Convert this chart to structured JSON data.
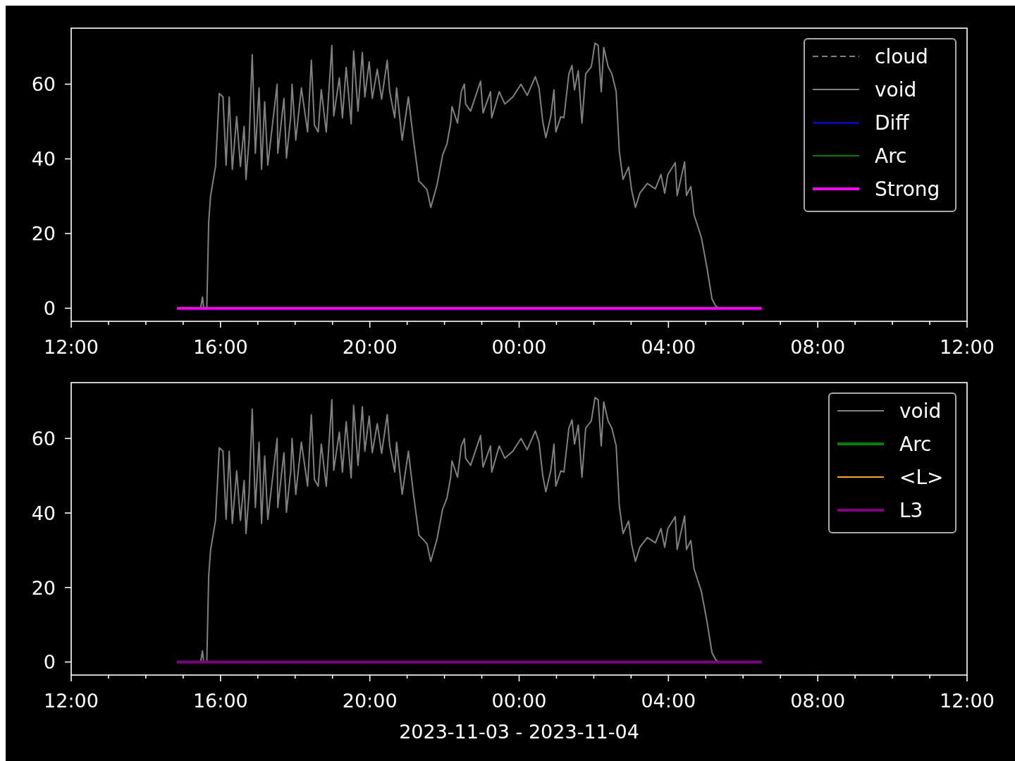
{
  "chart_data": [
    {
      "type": "line",
      "xlim": [
        "2023-11-03T12:00",
        "2023-11-04T12:00"
      ],
      "ylim": [
        -3.5,
        75
      ],
      "yticks": [
        0,
        20,
        40,
        60
      ],
      "xticks": [
        {
          "value": "2023-11-03T12:00",
          "label": "12:00"
        },
        {
          "value": "2023-11-03T13:00",
          "label": null
        },
        {
          "value": "2023-11-03T14:00",
          "label": null
        },
        {
          "value": "2023-11-03T15:00",
          "label": null
        },
        {
          "value": "2023-11-03T16:00",
          "label": "16:00"
        },
        {
          "value": "2023-11-03T17:00",
          "label": null
        },
        {
          "value": "2023-11-03T18:00",
          "label": null
        },
        {
          "value": "2023-11-03T19:00",
          "label": null
        },
        {
          "value": "2023-11-03T20:00",
          "label": "20:00"
        },
        {
          "value": "2023-11-03T21:00",
          "label": null
        },
        {
          "value": "2023-11-03T22:00",
          "label": null
        },
        {
          "value": "2023-11-03T23:00",
          "label": null
        },
        {
          "value": "2023-11-04T00:00",
          "label": "00:00"
        },
        {
          "value": "2023-11-04T01:00",
          "label": null
        },
        {
          "value": "2023-11-04T02:00",
          "label": null
        },
        {
          "value": "2023-11-04T03:00",
          "label": null
        },
        {
          "value": "2023-11-04T04:00",
          "label": "04:00"
        },
        {
          "value": "2023-11-04T05:00",
          "label": null
        },
        {
          "value": "2023-11-04T06:00",
          "label": null
        },
        {
          "value": "2023-11-04T07:00",
          "label": null
        },
        {
          "value": "2023-11-04T08:00",
          "label": "08:00"
        },
        {
          "value": "2023-11-04T09:00",
          "label": null
        },
        {
          "value": "2023-11-04T10:00",
          "label": null
        },
        {
          "value": "2023-11-04T11:00",
          "label": null
        },
        {
          "value": "2023-11-04T12:00",
          "label": "12:00"
        }
      ],
      "legend": "top right",
      "series": [
        {
          "name": "cloud",
          "color": "#808080",
          "line_style": "dashed"
        },
        {
          "name": "void",
          "color": "#808080",
          "x": [
            "2023-11-03T14:50",
            "2023-11-03T15:28",
            "2023-11-03T15:31",
            "2023-11-03T15:33",
            "2023-11-03T15:38",
            "2023-11-03T15:41",
            "2023-11-03T15:44",
            "2023-11-03T15:51",
            "2023-11-03T15:52",
            "2023-11-03T15:58",
            "2023-11-03T16:04",
            "2023-11-03T16:09",
            "2023-11-03T16:14",
            "2023-11-03T16:19",
            "2023-11-03T16:26",
            "2023-11-03T16:32",
            "2023-11-03T16:38",
            "2023-11-03T16:41",
            "2023-11-03T16:46",
            "2023-11-03T16:51",
            "2023-11-03T16:56",
            "2023-11-03T17:02",
            "2023-11-03T17:06",
            "2023-11-03T17:11",
            "2023-11-03T17:16",
            "2023-11-03T17:31",
            "2023-11-03T17:32",
            "2023-11-03T17:42",
            "2023-11-03T17:46",
            "2023-11-03T17:53",
            "2023-11-03T17:55",
            "2023-11-03T18:01",
            "2023-11-03T18:10",
            "2023-11-03T18:20",
            "2023-11-03T18:26",
            "2023-11-03T18:31",
            "2023-11-03T18:37",
            "2023-11-03T18:42",
            "2023-11-03T18:50",
            "2023-11-03T18:59",
            "2023-11-03T19:02",
            "2023-11-03T19:11",
            "2023-11-03T19:16",
            "2023-11-03T19:22",
            "2023-11-03T19:30",
            "2023-11-03T19:34",
            "2023-11-03T19:41",
            "2023-11-03T19:48",
            "2023-11-03T19:52",
            "2023-11-03T19:59",
            "2023-11-03T20:04",
            "2023-11-03T20:12",
            "2023-11-03T20:19",
            "2023-11-03T20:28",
            "2023-11-03T20:32",
            "2023-11-03T20:40",
            "2023-11-03T20:43",
            "2023-11-03T20:52",
            "2023-11-03T21:02",
            "2023-11-03T21:10",
            "2023-11-03T21:19",
            "2023-11-03T21:23",
            "2023-11-03T21:32",
            "2023-11-03T21:38",
            "2023-11-03T21:48",
            "2023-11-03T21:57",
            "2023-11-03T22:04",
            "2023-11-03T22:10",
            "2023-11-03T22:12",
            "2023-11-03T22:21",
            "2023-11-03T22:27",
            "2023-11-03T22:32",
            "2023-11-03T22:34",
            "2023-11-03T22:42",
            "2023-11-03T22:58",
            "2023-11-03T23:02",
            "2023-11-03T23:14",
            "2023-11-03T23:16",
            "2023-11-03T23:28",
            "2023-11-03T23:37",
            "2023-11-03T23:50",
            "2023-11-04T00:03",
            "2023-11-04T00:13",
            "2023-11-04T00:26",
            "2023-11-04T00:32",
            "2023-11-04T00:38",
            "2023-11-04T00:43",
            "2023-11-04T00:51",
            "2023-11-04T00:56",
            "2023-11-04T00:59",
            "2023-11-04T01:07",
            "2023-11-04T01:12",
            "2023-11-04T01:20",
            "2023-11-04T01:25",
            "2023-11-04T01:29",
            "2023-11-04T01:35",
            "2023-11-04T01:41",
            "2023-11-04T01:47",
            "2023-11-04T01:56",
            "2023-11-04T02:02",
            "2023-11-04T02:07",
            "2023-11-04T02:12",
            "2023-11-04T02:16",
            "2023-11-04T02:23",
            "2023-11-04T02:29",
            "2023-11-04T02:36",
            "2023-11-04T02:41",
            "2023-11-04T02:47",
            "2023-11-04T02:52",
            "2023-11-04T02:56",
            "2023-11-04T03:01",
            "2023-11-04T03:07",
            "2023-11-04T03:14",
            "2023-11-04T03:26",
            "2023-11-04T03:39",
            "2023-11-04T03:48",
            "2023-11-04T03:54",
            "2023-11-04T03:59",
            "2023-11-04T04:11",
            "2023-11-04T04:14",
            "2023-11-04T04:26",
            "2023-11-04T04:29",
            "2023-11-04T04:36",
            "2023-11-04T04:41",
            "2023-11-04T04:53",
            "2023-11-04T05:02",
            "2023-11-04T05:10",
            "2023-11-04T05:16",
            "2023-11-04T05:21"
          ],
          "values": [
            0,
            0,
            3,
            0,
            0,
            23,
            30,
            37,
            38,
            57.5,
            56.6,
            38.3,
            56.6,
            37.2,
            51.3,
            38,
            48.7,
            34.5,
            45.3,
            67.9,
            41.5,
            59,
            37.2,
            55.3,
            38.3,
            60,
            41.5,
            56.2,
            40.2,
            51.5,
            60,
            45,
            59,
            47.2,
            66.4,
            49,
            47.2,
            58.5,
            47.2,
            70.4,
            51.5,
            61.7,
            51,
            64.5,
            49.4,
            68.9,
            52.8,
            68.5,
            56.6,
            66,
            56.2,
            64,
            56,
            66.4,
            58,
            51,
            59,
            45,
            56.6,
            45.3,
            34,
            33.4,
            31.7,
            27,
            33,
            41,
            44,
            49.6,
            54,
            49.6,
            58,
            60,
            54.7,
            52.8,
            60.8,
            52.3,
            58,
            51,
            58,
            54.7,
            56.6,
            60,
            57,
            62,
            59,
            50,
            45.7,
            51.5,
            58.5,
            47.2,
            51.3,
            51,
            62.8,
            65,
            58.5,
            63.6,
            49.6,
            62.8,
            64.7,
            71,
            70.4,
            58,
            69.8,
            64.7,
            62.8,
            58,
            42,
            34.5,
            36.4,
            37.8,
            31.5,
            27,
            30.8,
            33.4,
            32,
            35.8,
            30.8,
            35.8,
            39,
            30.2,
            39.2,
            30.2,
            32.6,
            25.1,
            18.9,
            10.8,
            2.5,
            0.6,
            0
          ]
        },
        {
          "name": "Diff",
          "color": "#0000ff"
        },
        {
          "name": "Arc",
          "color": "#008000"
        },
        {
          "name": "Strong",
          "color": "#ff00ff",
          "x": [
            "2023-11-03T14:50",
            "2023-11-04T06:30"
          ],
          "values": [
            0,
            0
          ]
        }
      ]
    },
    {
      "type": "line",
      "xlim": [
        "2023-11-03T12:00",
        "2023-11-04T12:00"
      ],
      "ylim": [
        -3.5,
        75
      ],
      "yticks": [
        0,
        20,
        40,
        60
      ],
      "xlabel": "2023-11-03 - 2023-11-04",
      "xticks": [
        {
          "value": "2023-11-03T12:00",
          "label": "12:00"
        },
        {
          "value": "2023-11-03T13:00",
          "label": null
        },
        {
          "value": "2023-11-03T14:00",
          "label": null
        },
        {
          "value": "2023-11-03T15:00",
          "label": null
        },
        {
          "value": "2023-11-03T16:00",
          "label": "16:00"
        },
        {
          "value": "2023-11-03T17:00",
          "label": null
        },
        {
          "value": "2023-11-03T18:00",
          "label": null
        },
        {
          "value": "2023-11-03T19:00",
          "label": null
        },
        {
          "value": "2023-11-03T20:00",
          "label": "20:00"
        },
        {
          "value": "2023-11-03T21:00",
          "label": null
        },
        {
          "value": "2023-11-03T22:00",
          "label": null
        },
        {
          "value": "2023-11-03T23:00",
          "label": null
        },
        {
          "value": "2023-11-04T00:00",
          "label": "00:00"
        },
        {
          "value": "2023-11-04T01:00",
          "label": null
        },
        {
          "value": "2023-11-04T02:00",
          "label": null
        },
        {
          "value": "2023-11-04T03:00",
          "label": null
        },
        {
          "value": "2023-11-04T04:00",
          "label": "04:00"
        },
        {
          "value": "2023-11-04T05:00",
          "label": null
        },
        {
          "value": "2023-11-04T06:00",
          "label": null
        },
        {
          "value": "2023-11-04T07:00",
          "label": null
        },
        {
          "value": "2023-11-04T08:00",
          "label": "08:00"
        },
        {
          "value": "2023-11-04T09:00",
          "label": null
        },
        {
          "value": "2023-11-04T10:00",
          "label": null
        },
        {
          "value": "2023-11-04T11:00",
          "label": null
        },
        {
          "value": "2023-11-04T12:00",
          "label": "12:00"
        }
      ],
      "legend": "top right",
      "series": [
        {
          "name": "void",
          "color": "#808080",
          "x": [
            "2023-11-03T14:50",
            "2023-11-03T15:28",
            "2023-11-03T15:31",
            "2023-11-03T15:33",
            "2023-11-03T15:38",
            "2023-11-03T15:41",
            "2023-11-03T15:44",
            "2023-11-03T15:51",
            "2023-11-03T15:52",
            "2023-11-03T15:58",
            "2023-11-03T16:04",
            "2023-11-03T16:09",
            "2023-11-03T16:14",
            "2023-11-03T16:19",
            "2023-11-03T16:26",
            "2023-11-03T16:32",
            "2023-11-03T16:38",
            "2023-11-03T16:41",
            "2023-11-03T16:46",
            "2023-11-03T16:51",
            "2023-11-03T16:56",
            "2023-11-03T17:02",
            "2023-11-03T17:06",
            "2023-11-03T17:11",
            "2023-11-03T17:16",
            "2023-11-03T17:31",
            "2023-11-03T17:32",
            "2023-11-03T17:42",
            "2023-11-03T17:46",
            "2023-11-03T17:53",
            "2023-11-03T17:55",
            "2023-11-03T18:01",
            "2023-11-03T18:10",
            "2023-11-03T18:20",
            "2023-11-03T18:26",
            "2023-11-03T18:31",
            "2023-11-03T18:37",
            "2023-11-03T18:42",
            "2023-11-03T18:50",
            "2023-11-03T18:59",
            "2023-11-03T19:02",
            "2023-11-03T19:11",
            "2023-11-03T19:16",
            "2023-11-03T19:22",
            "2023-11-03T19:30",
            "2023-11-03T19:34",
            "2023-11-03T19:41",
            "2023-11-03T19:48",
            "2023-11-03T19:52",
            "2023-11-03T19:59",
            "2023-11-03T20:04",
            "2023-11-03T20:12",
            "2023-11-03T20:19",
            "2023-11-03T20:28",
            "2023-11-03T20:32",
            "2023-11-03T20:40",
            "2023-11-03T20:43",
            "2023-11-03T20:52",
            "2023-11-03T21:02",
            "2023-11-03T21:10",
            "2023-11-03T21:19",
            "2023-11-03T21:23",
            "2023-11-03T21:32",
            "2023-11-03T21:38",
            "2023-11-03T21:48",
            "2023-11-03T21:57",
            "2023-11-03T22:04",
            "2023-11-03T22:10",
            "2023-11-03T22:12",
            "2023-11-03T22:21",
            "2023-11-03T22:27",
            "2023-11-03T22:32",
            "2023-11-03T22:34",
            "2023-11-03T22:42",
            "2023-11-03T22:58",
            "2023-11-03T23:02",
            "2023-11-03T23:14",
            "2023-11-03T23:16",
            "2023-11-03T23:28",
            "2023-11-03T23:37",
            "2023-11-03T23:50",
            "2023-11-04T00:03",
            "2023-11-04T00:13",
            "2023-11-04T00:26",
            "2023-11-04T00:32",
            "2023-11-04T00:38",
            "2023-11-04T00:43",
            "2023-11-04T00:51",
            "2023-11-04T00:56",
            "2023-11-04T00:59",
            "2023-11-04T01:07",
            "2023-11-04T01:12",
            "2023-11-04T01:20",
            "2023-11-04T01:25",
            "2023-11-04T01:29",
            "2023-11-04T01:35",
            "2023-11-04T01:41",
            "2023-11-04T01:47",
            "2023-11-04T01:56",
            "2023-11-04T02:02",
            "2023-11-04T02:07",
            "2023-11-04T02:12",
            "2023-11-04T02:16",
            "2023-11-04T02:23",
            "2023-11-04T02:29",
            "2023-11-04T02:36",
            "2023-11-04T02:41",
            "2023-11-04T02:47",
            "2023-11-04T02:52",
            "2023-11-04T02:56",
            "2023-11-04T03:01",
            "2023-11-04T03:07",
            "2023-11-04T03:14",
            "2023-11-04T03:26",
            "2023-11-04T03:39",
            "2023-11-04T03:48",
            "2023-11-04T03:54",
            "2023-11-04T03:59",
            "2023-11-04T04:11",
            "2023-11-04T04:14",
            "2023-11-04T04:26",
            "2023-11-04T04:29",
            "2023-11-04T04:36",
            "2023-11-04T04:41",
            "2023-11-04T04:53",
            "2023-11-04T05:02",
            "2023-11-04T05:10",
            "2023-11-04T05:16",
            "2023-11-04T05:21"
          ],
          "values": [
            0,
            0,
            3,
            0,
            0,
            23,
            30,
            37,
            38,
            57.5,
            56.6,
            38.3,
            56.6,
            37.2,
            51.3,
            38,
            48.7,
            34.5,
            45.3,
            67.9,
            41.5,
            59,
            37.2,
            55.3,
            38.3,
            60,
            41.5,
            56.2,
            40.2,
            51.5,
            60,
            45,
            59,
            47.2,
            66.4,
            49,
            47.2,
            58.5,
            47.2,
            70.4,
            51.5,
            61.7,
            51,
            64.5,
            49.4,
            68.9,
            52.8,
            68.5,
            56.6,
            66,
            56.2,
            64,
            56,
            66.4,
            58,
            51,
            59,
            45,
            56.6,
            45.3,
            34,
            33.4,
            31.7,
            27,
            33,
            41,
            44,
            49.6,
            54,
            49.6,
            58,
            60,
            54.7,
            52.8,
            60.8,
            52.3,
            58,
            51,
            58,
            54.7,
            56.6,
            60,
            57,
            62,
            59,
            50,
            45.7,
            51.5,
            58.5,
            47.2,
            51.3,
            51,
            62.8,
            65,
            58.5,
            63.6,
            49.6,
            62.8,
            64.7,
            71,
            70.4,
            58,
            69.8,
            64.7,
            62.8,
            58,
            42,
            34.5,
            36.4,
            37.8,
            31.5,
            27,
            30.8,
            33.4,
            32,
            35.8,
            30.8,
            35.8,
            39,
            30.2,
            39.2,
            30.2,
            32.6,
            25.1,
            18.9,
            10.8,
            2.5,
            0.6,
            0
          ]
        },
        {
          "name": "Arc",
          "color": "#008000"
        },
        {
          "name": "<L>",
          "color": "#ffa500"
        },
        {
          "name": "L3",
          "color": "#800080",
          "x": [
            "2023-11-03T14:50",
            "2023-11-04T06:30"
          ],
          "values": [
            0,
            0
          ]
        }
      ]
    }
  ]
}
